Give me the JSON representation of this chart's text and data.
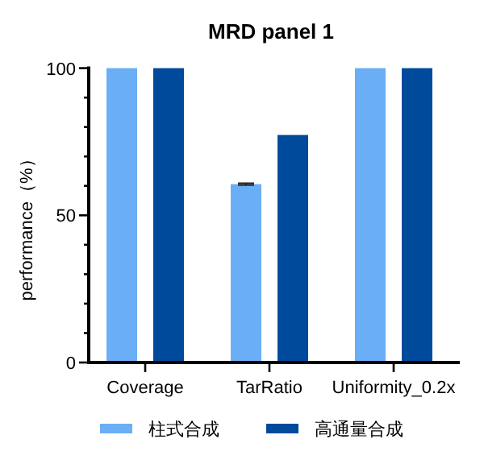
{
  "chart_data": {
    "type": "bar",
    "title": "MRD panel 1",
    "ylabel": "performance（%）",
    "categories": [
      "Coverage",
      "TarRatio",
      "Uniformity_0.2x"
    ],
    "series": [
      {
        "name": "柱式合成",
        "color": "#6aaef6",
        "values": [
          100,
          60.6,
          100
        ],
        "errors": [
          null,
          0.3,
          null
        ]
      },
      {
        "name": "高通量合成",
        "color": "#004a9c",
        "values": [
          100,
          77.3,
          100
        ]
      }
    ],
    "ylim": [
      0,
      100
    ],
    "yticks": [
      0,
      {
        "value": 10,
        "label": null
      },
      {
        "value": 20,
        "label": null
      },
      {
        "value": 30,
        "label": null
      },
      {
        "value": 40,
        "label": null
      },
      50,
      {
        "value": 60,
        "label": null
      },
      {
        "value": 70,
        "label": null
      },
      {
        "value": 80,
        "label": null
      },
      {
        "value": 90,
        "label": null
      },
      100
    ],
    "grid": false,
    "legend": "bottom"
  }
}
